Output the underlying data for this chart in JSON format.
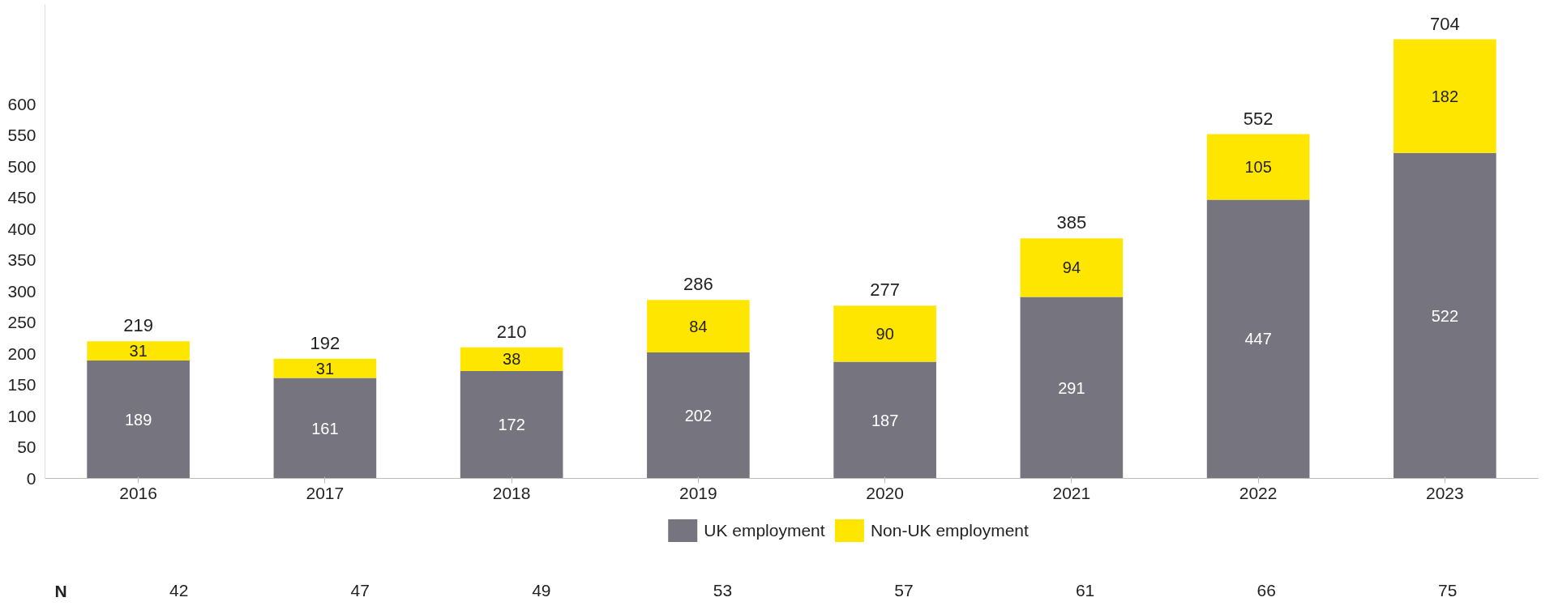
{
  "chart_data": {
    "type": "bar",
    "stacked": true,
    "categories": [
      "2016",
      "2017",
      "2018",
      "2019",
      "2020",
      "2021",
      "2022",
      "2023"
    ],
    "series": [
      {
        "name": "UK employment",
        "color": "#75747f",
        "values": [
          189,
          161,
          172,
          202,
          187,
          291,
          447,
          522
        ]
      },
      {
        "name": "Non-UK employment",
        "color": "#ffe600",
        "values": [
          31,
          31,
          38,
          84,
          90,
          94,
          105,
          182
        ]
      }
    ],
    "totals": [
      "219",
      "192",
      "210",
      "286",
      "277",
      "385",
      "552",
      "704"
    ],
    "data_labels": true,
    "ylim": [
      0,
      760
    ],
    "yticks": [
      0,
      50,
      100,
      150,
      200,
      250,
      300,
      350,
      400,
      450,
      500,
      550,
      600
    ],
    "grid": false,
    "legend": "bottom",
    "annotations": [
      "N",
      "42",
      "47",
      "49",
      "53",
      "57",
      "61",
      "66",
      "75"
    ]
  }
}
